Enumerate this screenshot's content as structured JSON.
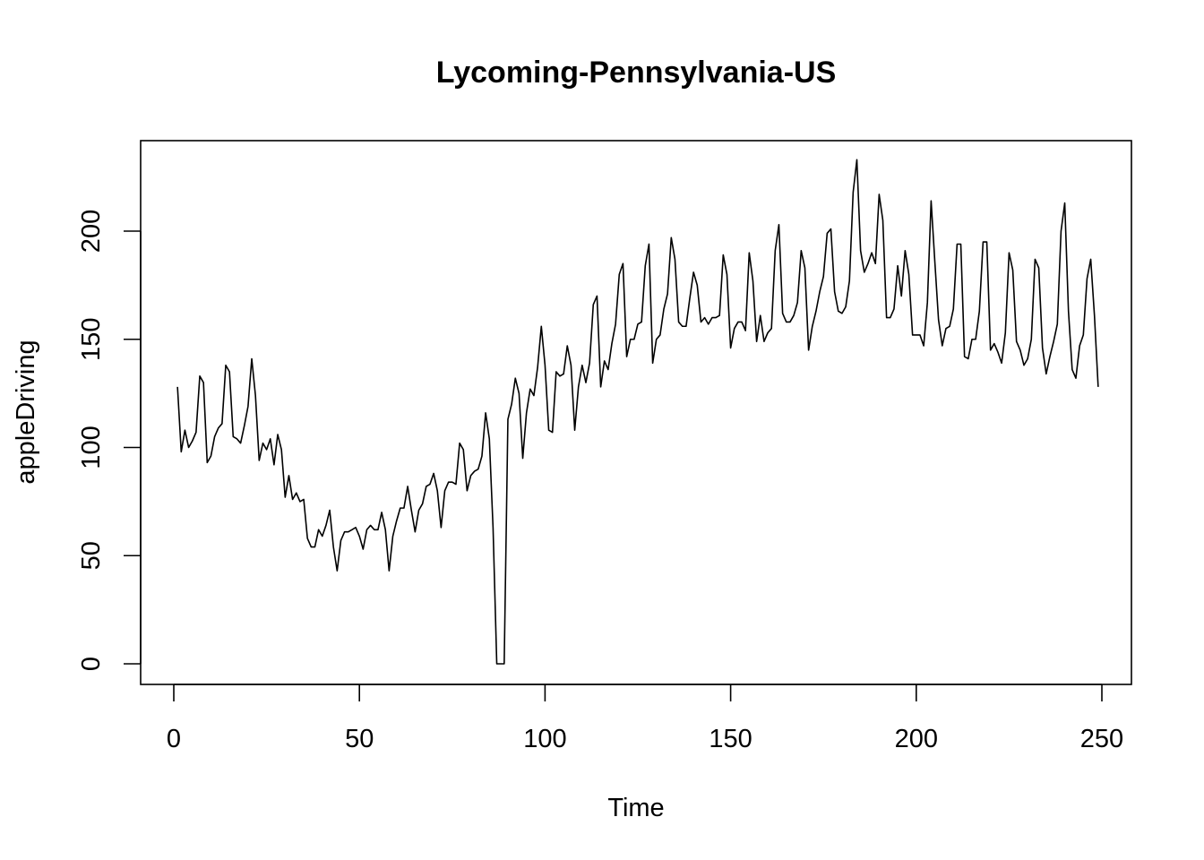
{
  "chart_data": {
    "type": "line",
    "title": "Lycoming-Pennsylvania-US",
    "xlabel": "Time",
    "ylabel": "appleDriving",
    "xlim": [
      1,
      248
    ],
    "ylim": [
      0,
      233
    ],
    "x_ticks": [
      0,
      50,
      100,
      150,
      200,
      250
    ],
    "y_ticks": [
      0,
      50,
      100,
      150,
      200
    ],
    "grid": false,
    "legend": "none",
    "line_color": "#000000",
    "series": [
      {
        "x_start": 1,
        "x_step": 1,
        "values": [
          128,
          98,
          108,
          100,
          103,
          107,
          133,
          130,
          93,
          96,
          105,
          109,
          111,
          138,
          135,
          105,
          104,
          102,
          110,
          119,
          141,
          124,
          94,
          102,
          99,
          104,
          92,
          106,
          99,
          77,
          87,
          76,
          79,
          75,
          76,
          58,
          54,
          54,
          62,
          59,
          64,
          71,
          54,
          43,
          57,
          61,
          61,
          62,
          63,
          59,
          53,
          62,
          64,
          62,
          62,
          70,
          62,
          43,
          59,
          66,
          72,
          72,
          82,
          71,
          61,
          71,
          74,
          82,
          83,
          88,
          80,
          63,
          80,
          84,
          84,
          83,
          102,
          99,
          80,
          87,
          89,
          90,
          96,
          116,
          104,
          63,
          0,
          0,
          0,
          113,
          120,
          132,
          125,
          95,
          116,
          127,
          124,
          137,
          156,
          138,
          108,
          107,
          135,
          133,
          134,
          147,
          138,
          108,
          128,
          138,
          130,
          139,
          166,
          170,
          128,
          140,
          136,
          148,
          157,
          180,
          185,
          142,
          150,
          150,
          157,
          158,
          184,
          194,
          139,
          150,
          152,
          164,
          171,
          197,
          187,
          158,
          156,
          156,
          169,
          181,
          175,
          158,
          160,
          157,
          160,
          160,
          161,
          189,
          180,
          146,
          155,
          158,
          158,
          154,
          190,
          177,
          149,
          161,
          149,
          153,
          155,
          191,
          203,
          162,
          158,
          158,
          161,
          167,
          191,
          183,
          145,
          156,
          163,
          172,
          179,
          199,
          201,
          172,
          163,
          162,
          165,
          177,
          218,
          233,
          191,
          181,
          185,
          190,
          185,
          217,
          205,
          160,
          160,
          164,
          184,
          170,
          191,
          180,
          152,
          152,
          152,
          147,
          167,
          214,
          186,
          159,
          147,
          155,
          156,
          164,
          194,
          194,
          142,
          141,
          150,
          150,
          163,
          195,
          195,
          145,
          148,
          144,
          139,
          153,
          190,
          182,
          149,
          145,
          138,
          141,
          150,
          187,
          183,
          146,
          134,
          142,
          149,
          157,
          200,
          213,
          163,
          136,
          132,
          147,
          152,
          178,
          187,
          161,
          128
        ]
      }
    ]
  }
}
